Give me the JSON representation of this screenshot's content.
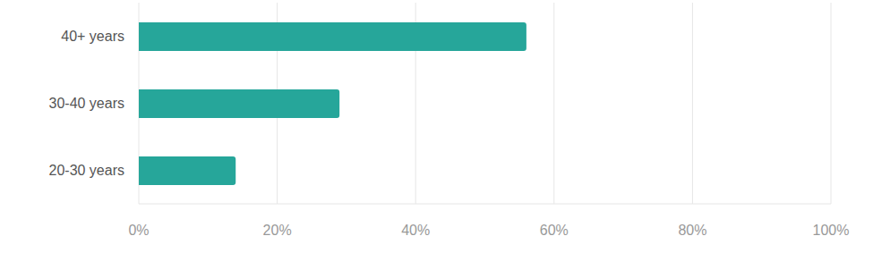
{
  "chart_data": {
    "type": "bar",
    "orientation": "horizontal",
    "categories": [
      "40+ years",
      "30-40 years",
      "20-30 years"
    ],
    "values": [
      56,
      29,
      14
    ],
    "color": "#26a69a",
    "xlim": [
      0,
      100
    ],
    "xticks": [
      {
        "value": 0,
        "label": "0%"
      },
      {
        "value": 20,
        "label": "20%"
      },
      {
        "value": 40,
        "label": "40%"
      },
      {
        "value": 60,
        "label": "60%"
      },
      {
        "value": 80,
        "label": "80%"
      },
      {
        "value": 100,
        "label": "100%"
      }
    ],
    "grid": true
  }
}
